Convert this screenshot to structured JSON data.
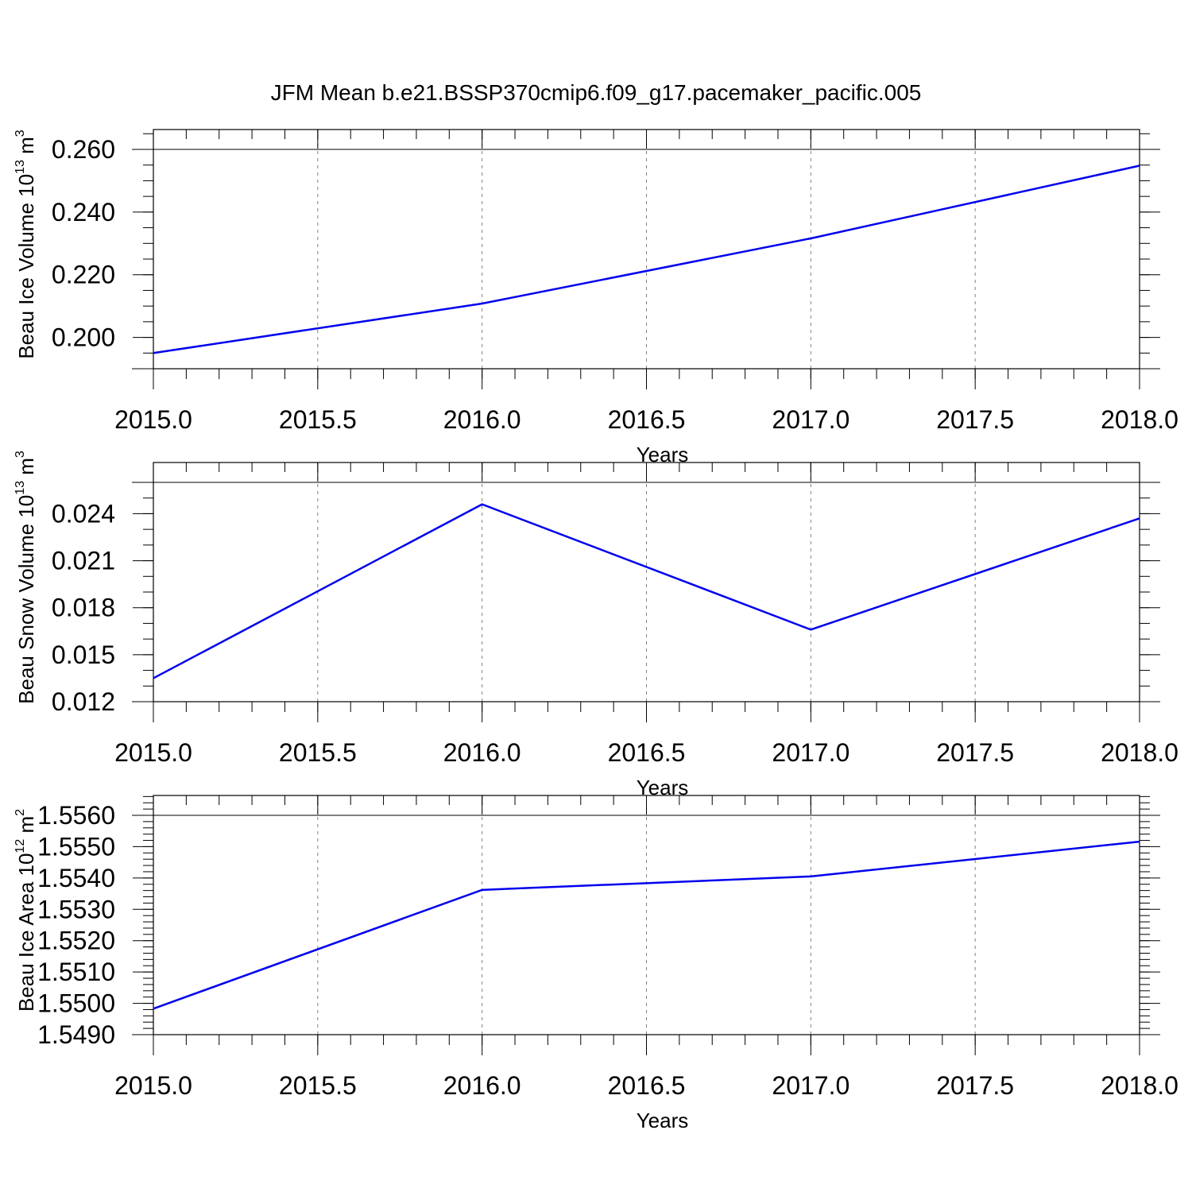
{
  "figure": {
    "title": "JFM Mean b.e21.BSSP370cmip6.f09_g17.pacemaker_pacific.005",
    "line_color": "#0000ee"
  },
  "chart_data": [
    {
      "type": "line",
      "xlabel": "Years",
      "ylabel": {
        "text": "Beau Ice Volume 10",
        "exp": "13",
        "unit": " m",
        "unit_exp": "3"
      },
      "xlim": [
        2015.0,
        2018.0
      ],
      "ylim": [
        0.19,
        0.26
      ],
      "x_ticks": [
        "2015.0",
        "2015.5",
        "2016.0",
        "2016.5",
        "2017.0",
        "2017.5",
        "2018.0"
      ],
      "y_ticks": [
        "0.200",
        "0.220",
        "0.240",
        "0.260"
      ],
      "grid": "dashed vertical lines at major x ticks",
      "x": [
        2015,
        2016,
        2017,
        2018
      ],
      "y": [
        0.195,
        0.2108,
        0.2316,
        0.2548
      ]
    },
    {
      "type": "line",
      "xlabel": "Years",
      "ylabel": {
        "text": "Beau Snow Volume 10",
        "exp": "13",
        "unit": " m",
        "unit_exp": "3"
      },
      "xlim": [
        2015.0,
        2018.0
      ],
      "ylim": [
        0.012,
        0.026
      ],
      "x_ticks": [
        "2015.0",
        "2015.5",
        "2016.0",
        "2016.5",
        "2017.0",
        "2017.5",
        "2018.0"
      ],
      "y_ticks": [
        "0.012",
        "0.015",
        "0.018",
        "0.021",
        "0.024"
      ],
      "grid": "dashed vertical lines at major x ticks",
      "x": [
        2015,
        2016,
        2017,
        2018
      ],
      "y": [
        0.0135,
        0.0246,
        0.0166,
        0.0237
      ]
    },
    {
      "type": "line",
      "xlabel": "Years",
      "ylabel": {
        "text": "Beau Ice Area 10",
        "exp": "12",
        "unit": " m",
        "unit_exp": "2"
      },
      "xlim": [
        2015.0,
        2018.0
      ],
      "ylim": [
        1.549,
        1.556
      ],
      "x_ticks": [
        "2015.0",
        "2015.5",
        "2016.0",
        "2016.5",
        "2017.0",
        "2017.5",
        "2018.0"
      ],
      "y_ticks": [
        "1.5490",
        "1.5500",
        "1.5510",
        "1.5520",
        "1.5530",
        "1.5540",
        "1.5550",
        "1.5560"
      ],
      "grid": "dashed vertical lines at major x ticks",
      "x": [
        2015,
        2016,
        2017,
        2018
      ],
      "y": [
        1.54983,
        1.55362,
        1.55405,
        1.55516
      ]
    }
  ]
}
